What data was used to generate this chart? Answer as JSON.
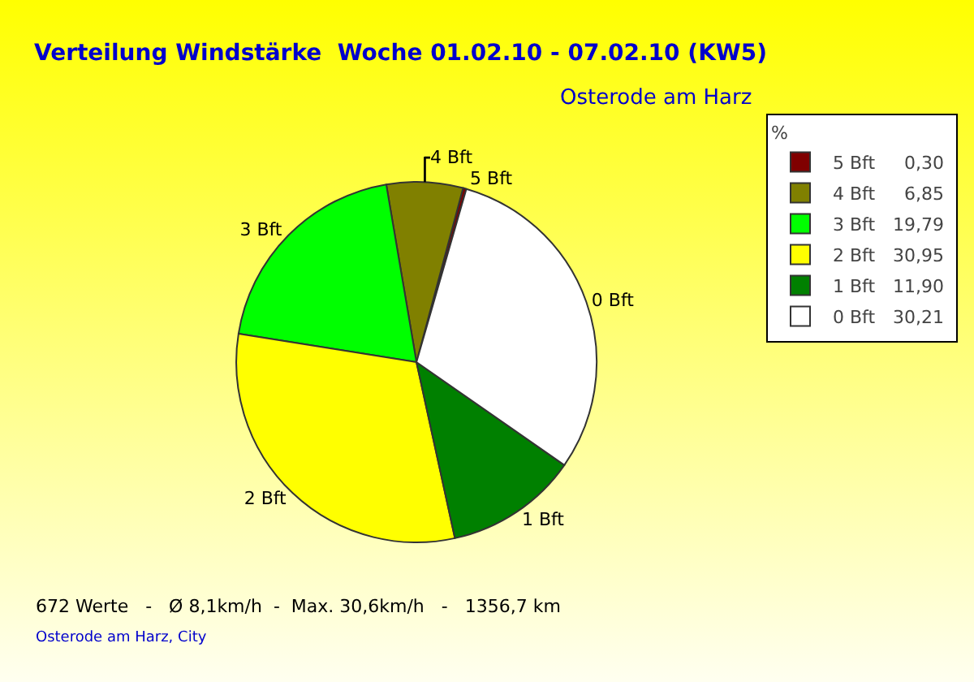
{
  "chart_data": {
    "type": "pie",
    "title": "Verteilung Windstärke  Woche 01.02.10 - 07.02.10 (KW5)",
    "subtitle": "Osterode am Harz",
    "legend_title": "%",
    "categories": [
      "5 Bft",
      "4 Bft",
      "3 Bft",
      "2 Bft",
      "1 Bft",
      "0 Bft"
    ],
    "values": [
      0.3,
      6.85,
      19.79,
      30.95,
      11.9,
      30.21
    ],
    "value_labels": [
      "0,30",
      "6,85",
      "19,79",
      "30,95",
      "11,90",
      "30,21"
    ],
    "colors": [
      "#800000",
      "#808000",
      "#00ff00",
      "#ffff00",
      "#008000",
      "#ffffff"
    ],
    "legend": "top right",
    "annotations": [
      "672 Werte   -   Ø 8,1km/h  -  Max. 30,6km/h   -   1356,7 km",
      "Osterode am Harz, City"
    ]
  }
}
